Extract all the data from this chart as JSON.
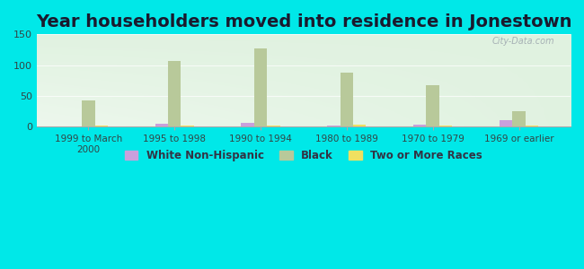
{
  "title": "Year householders moved into residence in Jonestown",
  "categories": [
    "1999 to March\n2000",
    "1995 to 1998",
    "1990 to 1994",
    "1980 to 1989",
    "1970 to 1979",
    "1969 or earlier"
  ],
  "series": {
    "White Non-Hispanic": [
      0,
      5,
      6,
      2,
      3,
      10
    ],
    "Black": [
      42,
      106,
      127,
      88,
      67,
      25
    ],
    "Two or More Races": [
      2,
      1,
      2,
      3,
      1,
      1
    ]
  },
  "colors": {
    "White Non-Hispanic": "#c9a0dc",
    "Black": "#b8c99a",
    "Two or More Races": "#f0e060"
  },
  "ylim": [
    0,
    150
  ],
  "yticks": [
    0,
    50,
    100,
    150
  ],
  "background_color": "#00e8e8",
  "watermark": "City-Data.com",
  "bar_width": 0.15,
  "title_fontsize": 14,
  "title_color": "#1a1a2e"
}
